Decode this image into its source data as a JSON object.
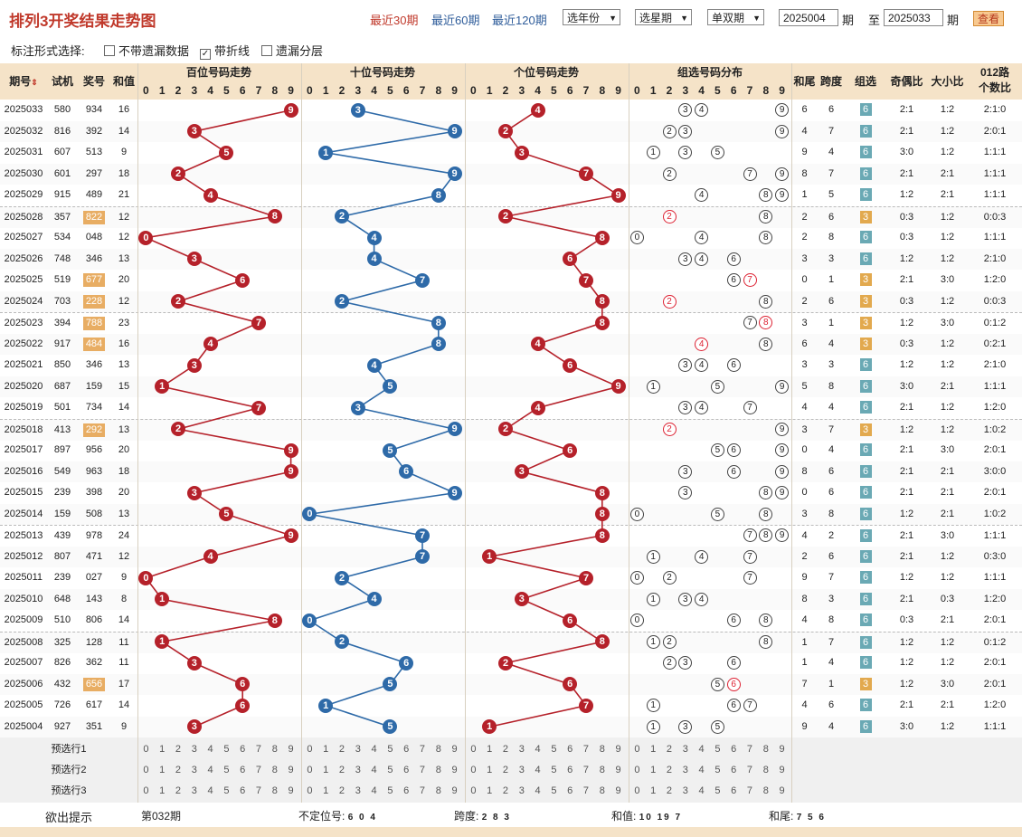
{
  "header": {
    "title": "排列3开奖结果走势图",
    "quick_links": [
      "最近30期",
      "最近60期",
      "最近120期"
    ],
    "year_select": "选年份",
    "week_select": "选星期",
    "parity_select": "单双期",
    "from_period": "2025004",
    "period_label": "期",
    "to_label": "至",
    "to_period": "2025033",
    "period_label2": "期",
    "view_button": "查看"
  },
  "options": {
    "label": "标注形式选择:",
    "items": [
      {
        "label": "不带遗漏数据",
        "checked": false
      },
      {
        "label": "带折线",
        "checked": true
      },
      {
        "label": "遗漏分层",
        "checked": false
      }
    ]
  },
  "columns": {
    "period": "期号",
    "test": "试机",
    "award": "奖号",
    "sum": "和值",
    "hundreds": "百位号码走势",
    "tens": "十位号码走势",
    "units": "个位号码走势",
    "group_dist": "组选号码分布",
    "tail": "和尾",
    "span": "跨度",
    "group": "组选",
    "odd_even": "奇偶比",
    "big_small": "大小比",
    "road012_line1": "012路",
    "road012_line2": "个数比"
  },
  "digits": [
    "0",
    "1",
    "2",
    "3",
    "4",
    "5",
    "6",
    "7",
    "8",
    "9"
  ],
  "rows": [
    {
      "period": "2025033",
      "test": "580",
      "award": "934",
      "sum": "16",
      "tail": "6",
      "span": "6",
      "group": "6",
      "odd_even": "2:1",
      "big_small": "1:2",
      "road012": "2:1:0"
    },
    {
      "period": "2025032",
      "test": "816",
      "award": "392",
      "sum": "14",
      "tail": "4",
      "span": "7",
      "group": "6",
      "odd_even": "2:1",
      "big_small": "1:2",
      "road012": "2:0:1"
    },
    {
      "period": "2025031",
      "test": "607",
      "award": "513",
      "sum": "9",
      "tail": "9",
      "span": "4",
      "group": "6",
      "odd_even": "3:0",
      "big_small": "1:2",
      "road012": "1:1:1"
    },
    {
      "period": "2025030",
      "test": "601",
      "award": "297",
      "sum": "18",
      "tail": "8",
      "span": "7",
      "group": "6",
      "odd_even": "2:1",
      "big_small": "2:1",
      "road012": "1:1:1"
    },
    {
      "period": "2025029",
      "test": "915",
      "award": "489",
      "sum": "21",
      "tail": "1",
      "span": "5",
      "group": "6",
      "odd_even": "1:2",
      "big_small": "2:1",
      "road012": "1:1:1"
    },
    {
      "period": "2025028",
      "test": "357",
      "award": "822",
      "sum": "12",
      "tail": "2",
      "span": "6",
      "group": "3",
      "odd_even": "0:3",
      "big_small": "1:2",
      "road012": "0:0:3"
    },
    {
      "period": "2025027",
      "test": "534",
      "award": "048",
      "sum": "12",
      "tail": "2",
      "span": "8",
      "group": "6",
      "odd_even": "0:3",
      "big_small": "1:2",
      "road012": "1:1:1"
    },
    {
      "period": "2025026",
      "test": "748",
      "award": "346",
      "sum": "13",
      "tail": "3",
      "span": "3",
      "group": "6",
      "odd_even": "1:2",
      "big_small": "1:2",
      "road012": "2:1:0"
    },
    {
      "period": "2025025",
      "test": "519",
      "award": "677",
      "sum": "20",
      "tail": "0",
      "span": "1",
      "group": "3",
      "odd_even": "2:1",
      "big_small": "3:0",
      "road012": "1:2:0"
    },
    {
      "period": "2025024",
      "test": "703",
      "award": "228",
      "sum": "12",
      "tail": "2",
      "span": "6",
      "group": "3",
      "odd_even": "0:3",
      "big_small": "1:2",
      "road012": "0:0:3"
    },
    {
      "period": "2025023",
      "test": "394",
      "award": "788",
      "sum": "23",
      "tail": "3",
      "span": "1",
      "group": "3",
      "odd_even": "1:2",
      "big_small": "3:0",
      "road012": "0:1:2"
    },
    {
      "period": "2025022",
      "test": "917",
      "award": "484",
      "sum": "16",
      "tail": "6",
      "span": "4",
      "group": "3",
      "odd_even": "0:3",
      "big_small": "1:2",
      "road012": "0:2:1"
    },
    {
      "period": "2025021",
      "test": "850",
      "award": "346",
      "sum": "13",
      "tail": "3",
      "span": "3",
      "group": "6",
      "odd_even": "1:2",
      "big_small": "1:2",
      "road012": "2:1:0"
    },
    {
      "period": "2025020",
      "test": "687",
      "award": "159",
      "sum": "15",
      "tail": "5",
      "span": "8",
      "group": "6",
      "odd_even": "3:0",
      "big_small": "2:1",
      "road012": "1:1:1"
    },
    {
      "period": "2025019",
      "test": "501",
      "award": "734",
      "sum": "14",
      "tail": "4",
      "span": "4",
      "group": "6",
      "odd_even": "2:1",
      "big_small": "1:2",
      "road012": "1:2:0"
    },
    {
      "period": "2025018",
      "test": "413",
      "award": "292",
      "sum": "13",
      "tail": "3",
      "span": "7",
      "group": "3",
      "odd_even": "1:2",
      "big_small": "1:2",
      "road012": "1:0:2"
    },
    {
      "period": "2025017",
      "test": "897",
      "award": "956",
      "sum": "20",
      "tail": "0",
      "span": "4",
      "group": "6",
      "odd_even": "2:1",
      "big_small": "3:0",
      "road012": "2:0:1"
    },
    {
      "period": "2025016",
      "test": "549",
      "award": "963",
      "sum": "18",
      "tail": "8",
      "span": "6",
      "group": "6",
      "odd_even": "2:1",
      "big_small": "2:1",
      "road012": "3:0:0"
    },
    {
      "period": "2025015",
      "test": "239",
      "award": "398",
      "sum": "20",
      "tail": "0",
      "span": "6",
      "group": "6",
      "odd_even": "2:1",
      "big_small": "2:1",
      "road012": "2:0:1"
    },
    {
      "period": "2025014",
      "test": "159",
      "award": "508",
      "sum": "13",
      "tail": "3",
      "span": "8",
      "group": "6",
      "odd_even": "1:2",
      "big_small": "2:1",
      "road012": "1:0:2"
    },
    {
      "period": "2025013",
      "test": "439",
      "award": "978",
      "sum": "24",
      "tail": "4",
      "span": "2",
      "group": "6",
      "odd_even": "2:1",
      "big_small": "3:0",
      "road012": "1:1:1"
    },
    {
      "period": "2025012",
      "test": "807",
      "award": "471",
      "sub": "",
      "sum": "12",
      "tail": "2",
      "span": "6",
      "group": "6",
      "odd_even": "2:1",
      "big_small": "1:2",
      "road012": "0:3:0"
    },
    {
      "period": "2025011",
      "test": "239",
      "award": "027",
      "sum": "9",
      "tail": "9",
      "span": "7",
      "group": "6",
      "odd_even": "1:2",
      "big_small": "1:2",
      "road012": "1:1:1"
    },
    {
      "period": "2025010",
      "test": "648",
      "award": "143",
      "sum": "8",
      "tail": "8",
      "span": "3",
      "group": "6",
      "odd_even": "2:1",
      "big_small": "0:3",
      "road012": "1:2:0"
    },
    {
      "period": "2025009",
      "test": "510",
      "award": "806",
      "sum": "14",
      "tail": "4",
      "span": "8",
      "group": "6",
      "odd_even": "0:3",
      "big_small": "2:1",
      "road012": "2:0:1"
    },
    {
      "period": "2025008",
      "test": "325",
      "award": "128",
      "sum": "11",
      "tail": "1",
      "span": "7",
      "group": "6",
      "odd_even": "1:2",
      "big_small": "1:2",
      "road012": "0:1:2"
    },
    {
      "period": "2025007",
      "test": "826",
      "award": "362",
      "sum": "11",
      "tail": "1",
      "span": "4",
      "group": "6",
      "odd_even": "1:2",
      "big_small": "1:2",
      "road012": "2:0:1"
    },
    {
      "period": "2025006",
      "test": "432",
      "award": "656",
      "sum": "17",
      "tail": "7",
      "span": "1",
      "group": "3",
      "odd_even": "1:2",
      "big_small": "3:0",
      "road012": "2:0:1"
    },
    {
      "period": "2025005",
      "test": "726",
      "award": "617",
      "sum": "14",
      "tail": "4",
      "span": "6",
      "group": "6",
      "odd_even": "2:1",
      "big_small": "2:1",
      "road012": "1:2:0"
    },
    {
      "period": "2025004",
      "test": "927",
      "award": "351",
      "sum": "9",
      "tail": "9",
      "span": "4",
      "group": "6",
      "odd_even": "3:0",
      "big_small": "1:2",
      "road012": "1:1:1"
    }
  ],
  "preselect": [
    "预选行1",
    "预选行2",
    "预选行3"
  ],
  "hint": {
    "label": "欲出提示",
    "period": "第032期",
    "unfixed_label": "不定位号:",
    "unfixed_value": "6 0 4",
    "span_label": "跨度:",
    "span_value": "2 8 3",
    "sum_label": "和值:",
    "sum_value": "10 19 7",
    "tail_label": "和尾:",
    "tail_value": "7 5 6"
  },
  "colors": {
    "title": "#c0392b",
    "hundreds_ball": "#b5212a",
    "tens_ball": "#2e6aa8",
    "units_ball": "#b5212a",
    "header_bg": "#f5e3c8",
    "group6": "#6aa9b4",
    "group3": "#e2a94e"
  }
}
